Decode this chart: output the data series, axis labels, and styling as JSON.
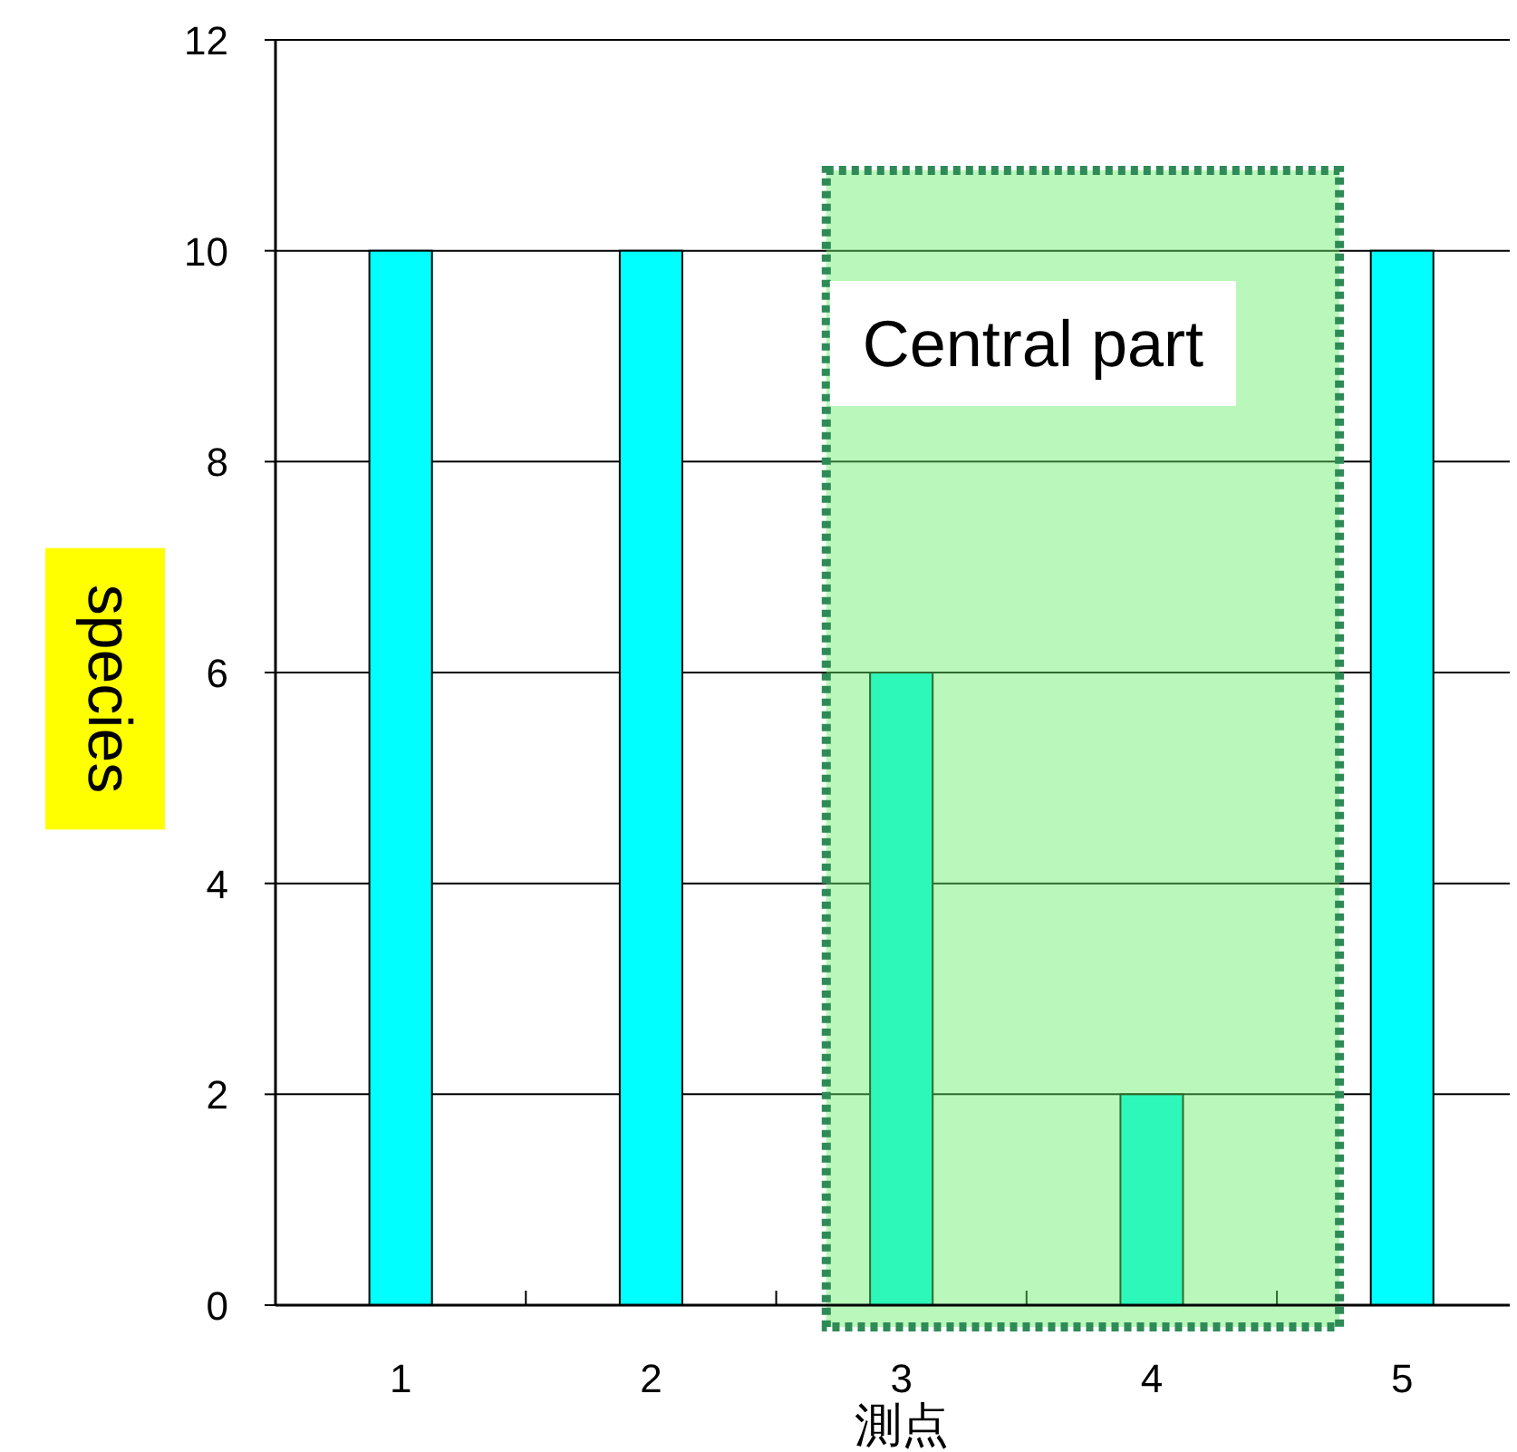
{
  "chart_data": {
    "type": "bar",
    "xlabel": "測点",
    "ylabel": "species",
    "x": [
      1,
      2,
      3,
      4,
      5
    ],
    "values": [
      10,
      10,
      6,
      2,
      10
    ],
    "color": "#00ffff",
    "xlim": [
      0.5,
      5.43
    ],
    "xticks": [
      1,
      {
        "value": 1.5,
        "label": null
      },
      2,
      {
        "value": 2.5,
        "label": null
      },
      3,
      {
        "value": 3.5,
        "label": null
      },
      4,
      {
        "value": 4.5,
        "label": null
      },
      5
    ],
    "ylim": [
      0,
      12
    ],
    "yticks": [
      0,
      2,
      4,
      6,
      8,
      10,
      12
    ],
    "grid": "y",
    "bands": [
      {
        "axis": "x",
        "from": 2.7,
        "to": 4.75,
        "label": "Central part",
        "color": "#66ee66"
      }
    ]
  }
}
